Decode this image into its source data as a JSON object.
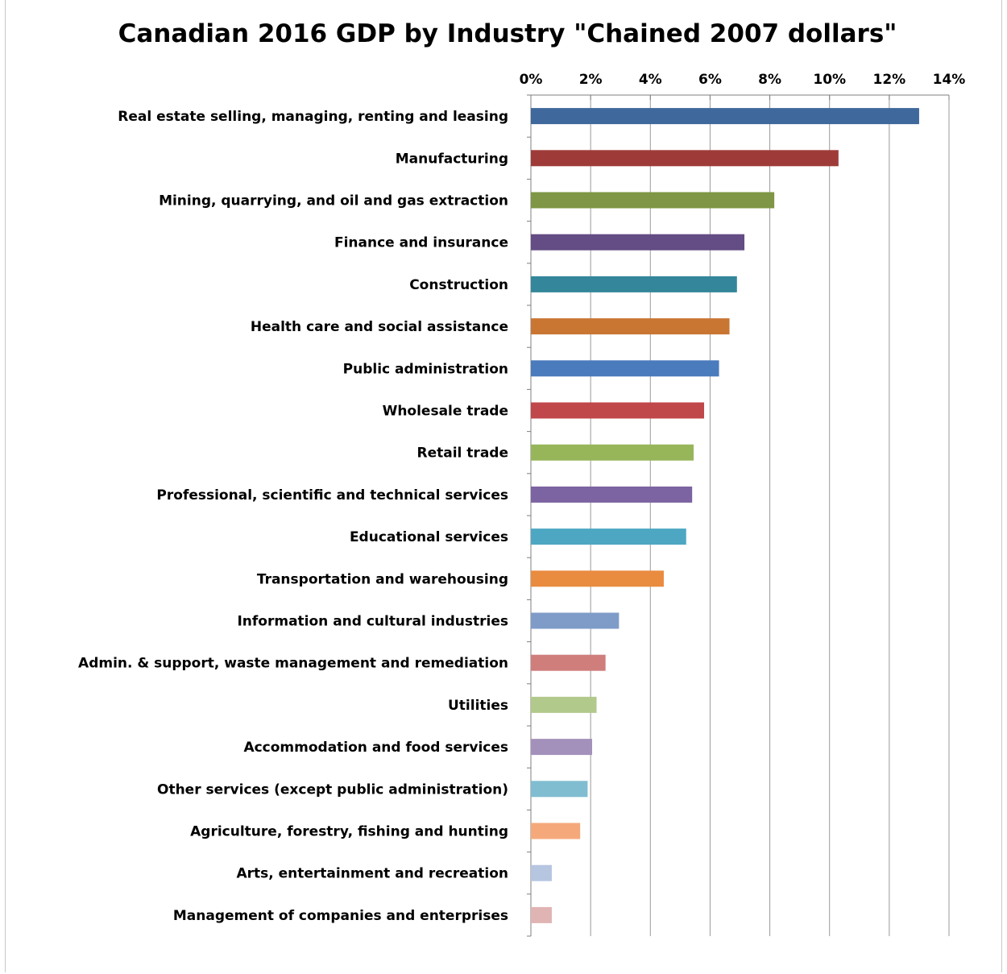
{
  "chart_data": {
    "type": "bar",
    "orientation": "horizontal",
    "title": "Canadian  2016 GDP by Industry \"Chained 2007 dollars\"",
    "xlabel": "",
    "ylabel": "",
    "xlim": [
      0,
      14
    ],
    "x_ticks": [
      "0%",
      "2%",
      "4%",
      "6%",
      "8%",
      "10%",
      "12%",
      "14%"
    ],
    "x_axis_position": "top",
    "grid": true,
    "legend": "none",
    "categories": [
      "Real estate selling, managing, renting and leasing",
      "Manufacturing",
      "Mining, quarrying, and oil and gas extraction",
      "Finance and insurance",
      "Construction",
      "Health care and social assistance",
      "Public administration",
      "Wholesale trade",
      "Retail trade",
      "Professional, scientific and technical services",
      "Educational services",
      "Transportation and warehousing",
      "Information and cultural industries",
      "Admin. & support, waste management and remediation",
      "Utilities",
      "Accommodation and food services",
      "Other services (except public administration)",
      "Agriculture, forestry, fishing and hunting",
      "Arts, entertainment and recreation",
      "Management of companies and enterprises"
    ],
    "values": [
      13.0,
      10.3,
      8.15,
      7.15,
      6.9,
      6.65,
      6.3,
      5.8,
      5.45,
      5.4,
      5.2,
      4.45,
      2.95,
      2.5,
      2.2,
      2.05,
      1.9,
      1.65,
      0.7,
      0.7
    ],
    "colors": [
      "#3f689c",
      "#9e3b39",
      "#7e9645",
      "#644c84",
      "#34879a",
      "#c97633",
      "#4a7bbd",
      "#c0474a",
      "#97b65a",
      "#7c63a1",
      "#4da7c3",
      "#e98c3f",
      "#7f9cc8",
      "#cf7e7c",
      "#b2c98c",
      "#a391bb",
      "#80bdd1",
      "#f5a97a",
      "#b6c5e0",
      "#e0b4b3"
    ]
  }
}
